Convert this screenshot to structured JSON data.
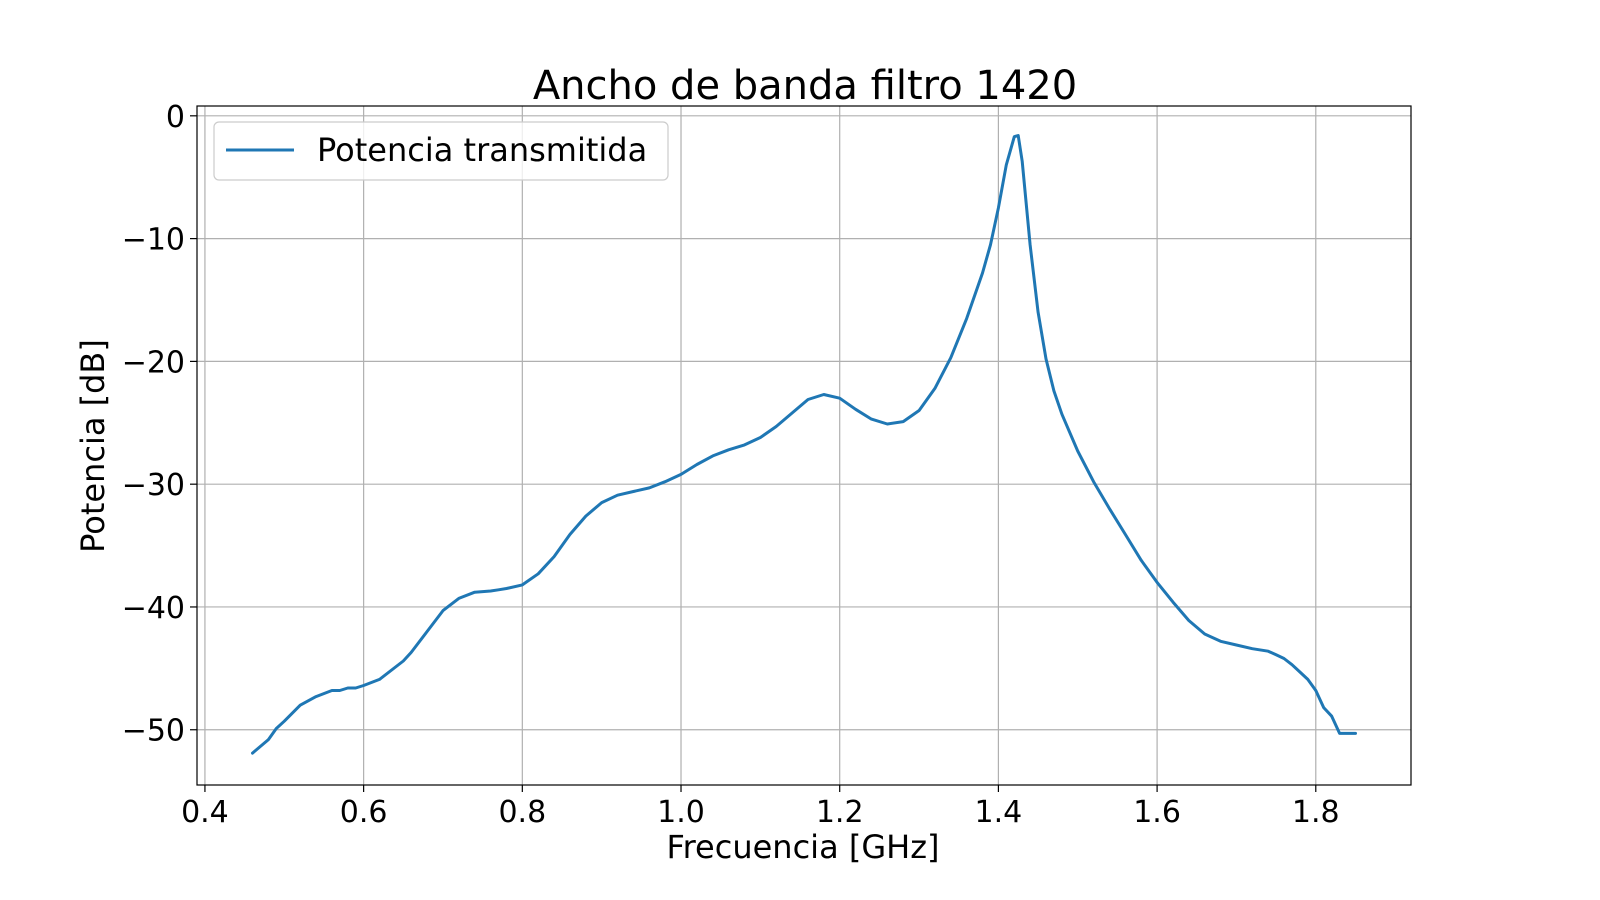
{
  "chart_data": {
    "type": "line",
    "title": "Ancho de banda filtro 1420",
    "xlabel": "Frecuencia [GHz]",
    "ylabel": "Potencia [dB]",
    "xlim": [
      0.39,
      1.92
    ],
    "ylim": [
      -54.5,
      0.8
    ],
    "xticks": [
      0.4,
      0.6,
      0.8,
      1.0,
      1.2,
      1.4,
      1.6,
      1.8
    ],
    "xtick_labels": [
      "0.4",
      "0.6",
      "0.8",
      "1.0",
      "1.2",
      "1.4",
      "1.6",
      "1.8"
    ],
    "yticks": [
      0,
      -10,
      -20,
      -30,
      -40,
      -50
    ],
    "ytick_labels": [
      "0",
      "−10",
      "−20",
      "−30",
      "−40",
      "−50"
    ],
    "grid": true,
    "legend_position": "top-left",
    "series": [
      {
        "name": "Potencia transmitida",
        "color": "#1f77b4",
        "x": [
          0.46,
          0.48,
          0.49,
          0.5,
          0.52,
          0.54,
          0.56,
          0.57,
          0.58,
          0.59,
          0.6,
          0.62,
          0.65,
          0.66,
          0.68,
          0.7,
          0.72,
          0.74,
          0.76,
          0.77,
          0.78,
          0.8,
          0.82,
          0.84,
          0.86,
          0.88,
          0.9,
          0.92,
          0.94,
          0.96,
          0.98,
          1.0,
          1.02,
          1.04,
          1.06,
          1.08,
          1.1,
          1.12,
          1.14,
          1.16,
          1.18,
          1.2,
          1.22,
          1.24,
          1.26,
          1.28,
          1.3,
          1.32,
          1.34,
          1.36,
          1.38,
          1.39,
          1.4,
          1.41,
          1.42,
          1.425,
          1.43,
          1.44,
          1.45,
          1.46,
          1.47,
          1.48,
          1.5,
          1.52,
          1.54,
          1.56,
          1.58,
          1.6,
          1.62,
          1.64,
          1.66,
          1.68,
          1.7,
          1.72,
          1.74,
          1.75,
          1.76,
          1.77,
          1.78,
          1.79,
          1.8,
          1.81,
          1.82,
          1.83,
          1.84,
          1.85
        ],
        "y": [
          -51.9,
          -50.8,
          -49.9,
          -49.3,
          -48.0,
          -47.3,
          -46.8,
          -46.8,
          -46.6,
          -46.6,
          -46.4,
          -45.9,
          -44.4,
          -43.7,
          -42.0,
          -40.3,
          -39.3,
          -38.8,
          -38.7,
          -38.6,
          -38.5,
          -38.2,
          -37.3,
          -35.9,
          -34.1,
          -32.6,
          -31.5,
          -30.9,
          -30.6,
          -30.3,
          -29.8,
          -29.2,
          -28.4,
          -27.7,
          -27.2,
          -26.8,
          -26.2,
          -25.3,
          -24.2,
          -23.1,
          -22.7,
          -23.0,
          -23.9,
          -24.7,
          -25.1,
          -24.9,
          -24.0,
          -22.2,
          -19.7,
          -16.5,
          -12.8,
          -10.5,
          -7.5,
          -4.0,
          -1.7,
          -1.6,
          -3.7,
          -10.5,
          -16.0,
          -19.8,
          -22.4,
          -24.3,
          -27.3,
          -29.8,
          -32.0,
          -34.1,
          -36.2,
          -38.0,
          -39.6,
          -41.1,
          -42.2,
          -42.8,
          -43.1,
          -43.4,
          -43.6,
          -43.9,
          -44.2,
          -44.7,
          -45.3,
          -45.9,
          -46.8,
          -48.2,
          -48.9,
          -50.3,
          -50.3,
          -50.3
        ]
      }
    ]
  }
}
